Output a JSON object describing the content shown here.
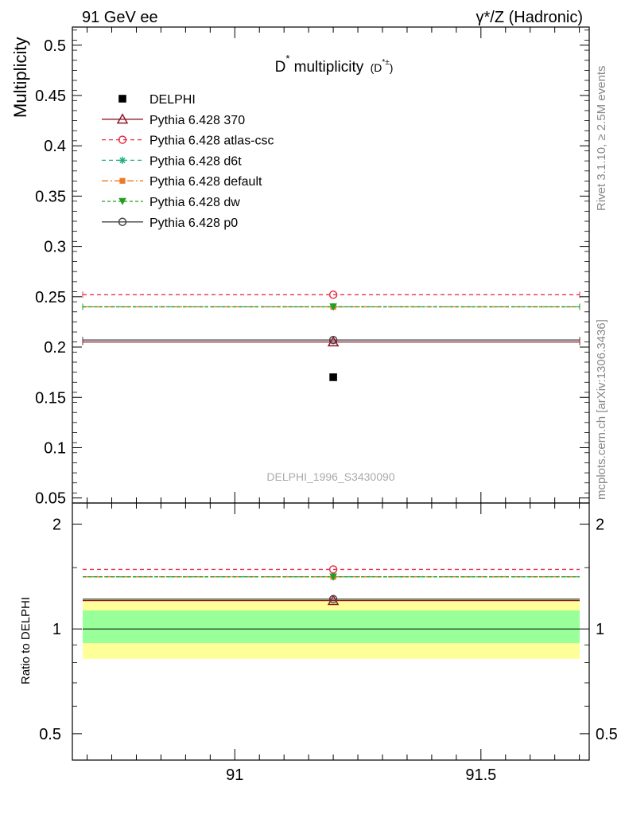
{
  "header": {
    "left": "91 GeV ee",
    "right": "γ*/Z (Hadronic)"
  },
  "side_labels": {
    "rivet": "Rivet 3.1.10, ≥ 2.5M events",
    "mcplots": "mcplots.cern.ch [arXiv:1306.3436]"
  },
  "chart_data": {
    "type": "scatter",
    "title": "D* multiplicity (D*±)",
    "title_parts": {
      "main": "D",
      "sup": "*",
      "rest": " multiplicity",
      "sub_open": "(D",
      "sub_sup": "*±",
      "sub_close": ")"
    },
    "watermark": "DELPHI_1996_S3430090",
    "xlim": [
      90.67,
      91.72
    ],
    "x_ticks": [
      91,
      91.5
    ],
    "x_tick_labels": [
      "91",
      "91.5"
    ],
    "main": {
      "ylabel": "Multiplicity",
      "ylim": [
        0.045,
        0.518
      ],
      "y_ticks": [
        0.05,
        0.1,
        0.15,
        0.2,
        0.25,
        0.3,
        0.35,
        0.4,
        0.45,
        0.5
      ],
      "y_tick_labels": [
        "0.05",
        "0.1",
        "0.15",
        "0.2",
        "0.25",
        "0.3",
        "0.35",
        "0.4",
        "0.45",
        "0.5"
      ]
    },
    "ratio": {
      "ylabel": "Ratio to DELPHI",
      "ylim": [
        0.42,
        2.3
      ],
      "log": true,
      "y_ticks": [
        0.5,
        1,
        2
      ],
      "y_tick_labels": [
        "0.5",
        "1",
        "2"
      ],
      "band_inner": [
        0.91,
        1.13
      ],
      "band_outer": [
        0.82,
        1.22
      ]
    },
    "x_point": 91.2,
    "bin": [
      90.67,
      91.72
    ],
    "data": {
      "name": "DELPHI",
      "x": 91.2,
      "y": 0.17
    },
    "series": [
      {
        "name": "Pythia 6.428 370",
        "y": 0.205,
        "color": "#8b1a2a",
        "dash": "",
        "marker": "triangle-open"
      },
      {
        "name": "Pythia 6.428 atlas-csc",
        "y": 0.252,
        "color": "#e8304a",
        "dash": "5,4",
        "marker": "circle-open"
      },
      {
        "name": "Pythia 6.428 d6t",
        "y": 0.24,
        "color": "#20b080",
        "dash": "5,4",
        "marker": "star"
      },
      {
        "name": "Pythia 6.428 default",
        "y": 0.24,
        "color": "#f07820",
        "dash": "8,3,2,3",
        "marker": "square"
      },
      {
        "name": "Pythia 6.428 dw",
        "y": 0.24,
        "color": "#20a020",
        "dash": "4,3",
        "marker": "triangle-down"
      },
      {
        "name": "Pythia 6.428 p0",
        "y": 0.207,
        "color": "#444444",
        "dash": "",
        "marker": "circle-open"
      }
    ],
    "colors": {
      "band_inner": "#99ff99",
      "band_outer": "#ffff99"
    }
  }
}
